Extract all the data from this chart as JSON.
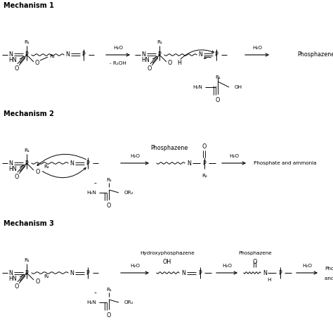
{
  "bg": "#ffffff",
  "mech_labels": [
    "Mechanism 1",
    "Mechanism 2",
    "Mechanism 3"
  ],
  "font_bold": 7.0,
  "font_base": 5.8,
  "font_small": 5.2
}
